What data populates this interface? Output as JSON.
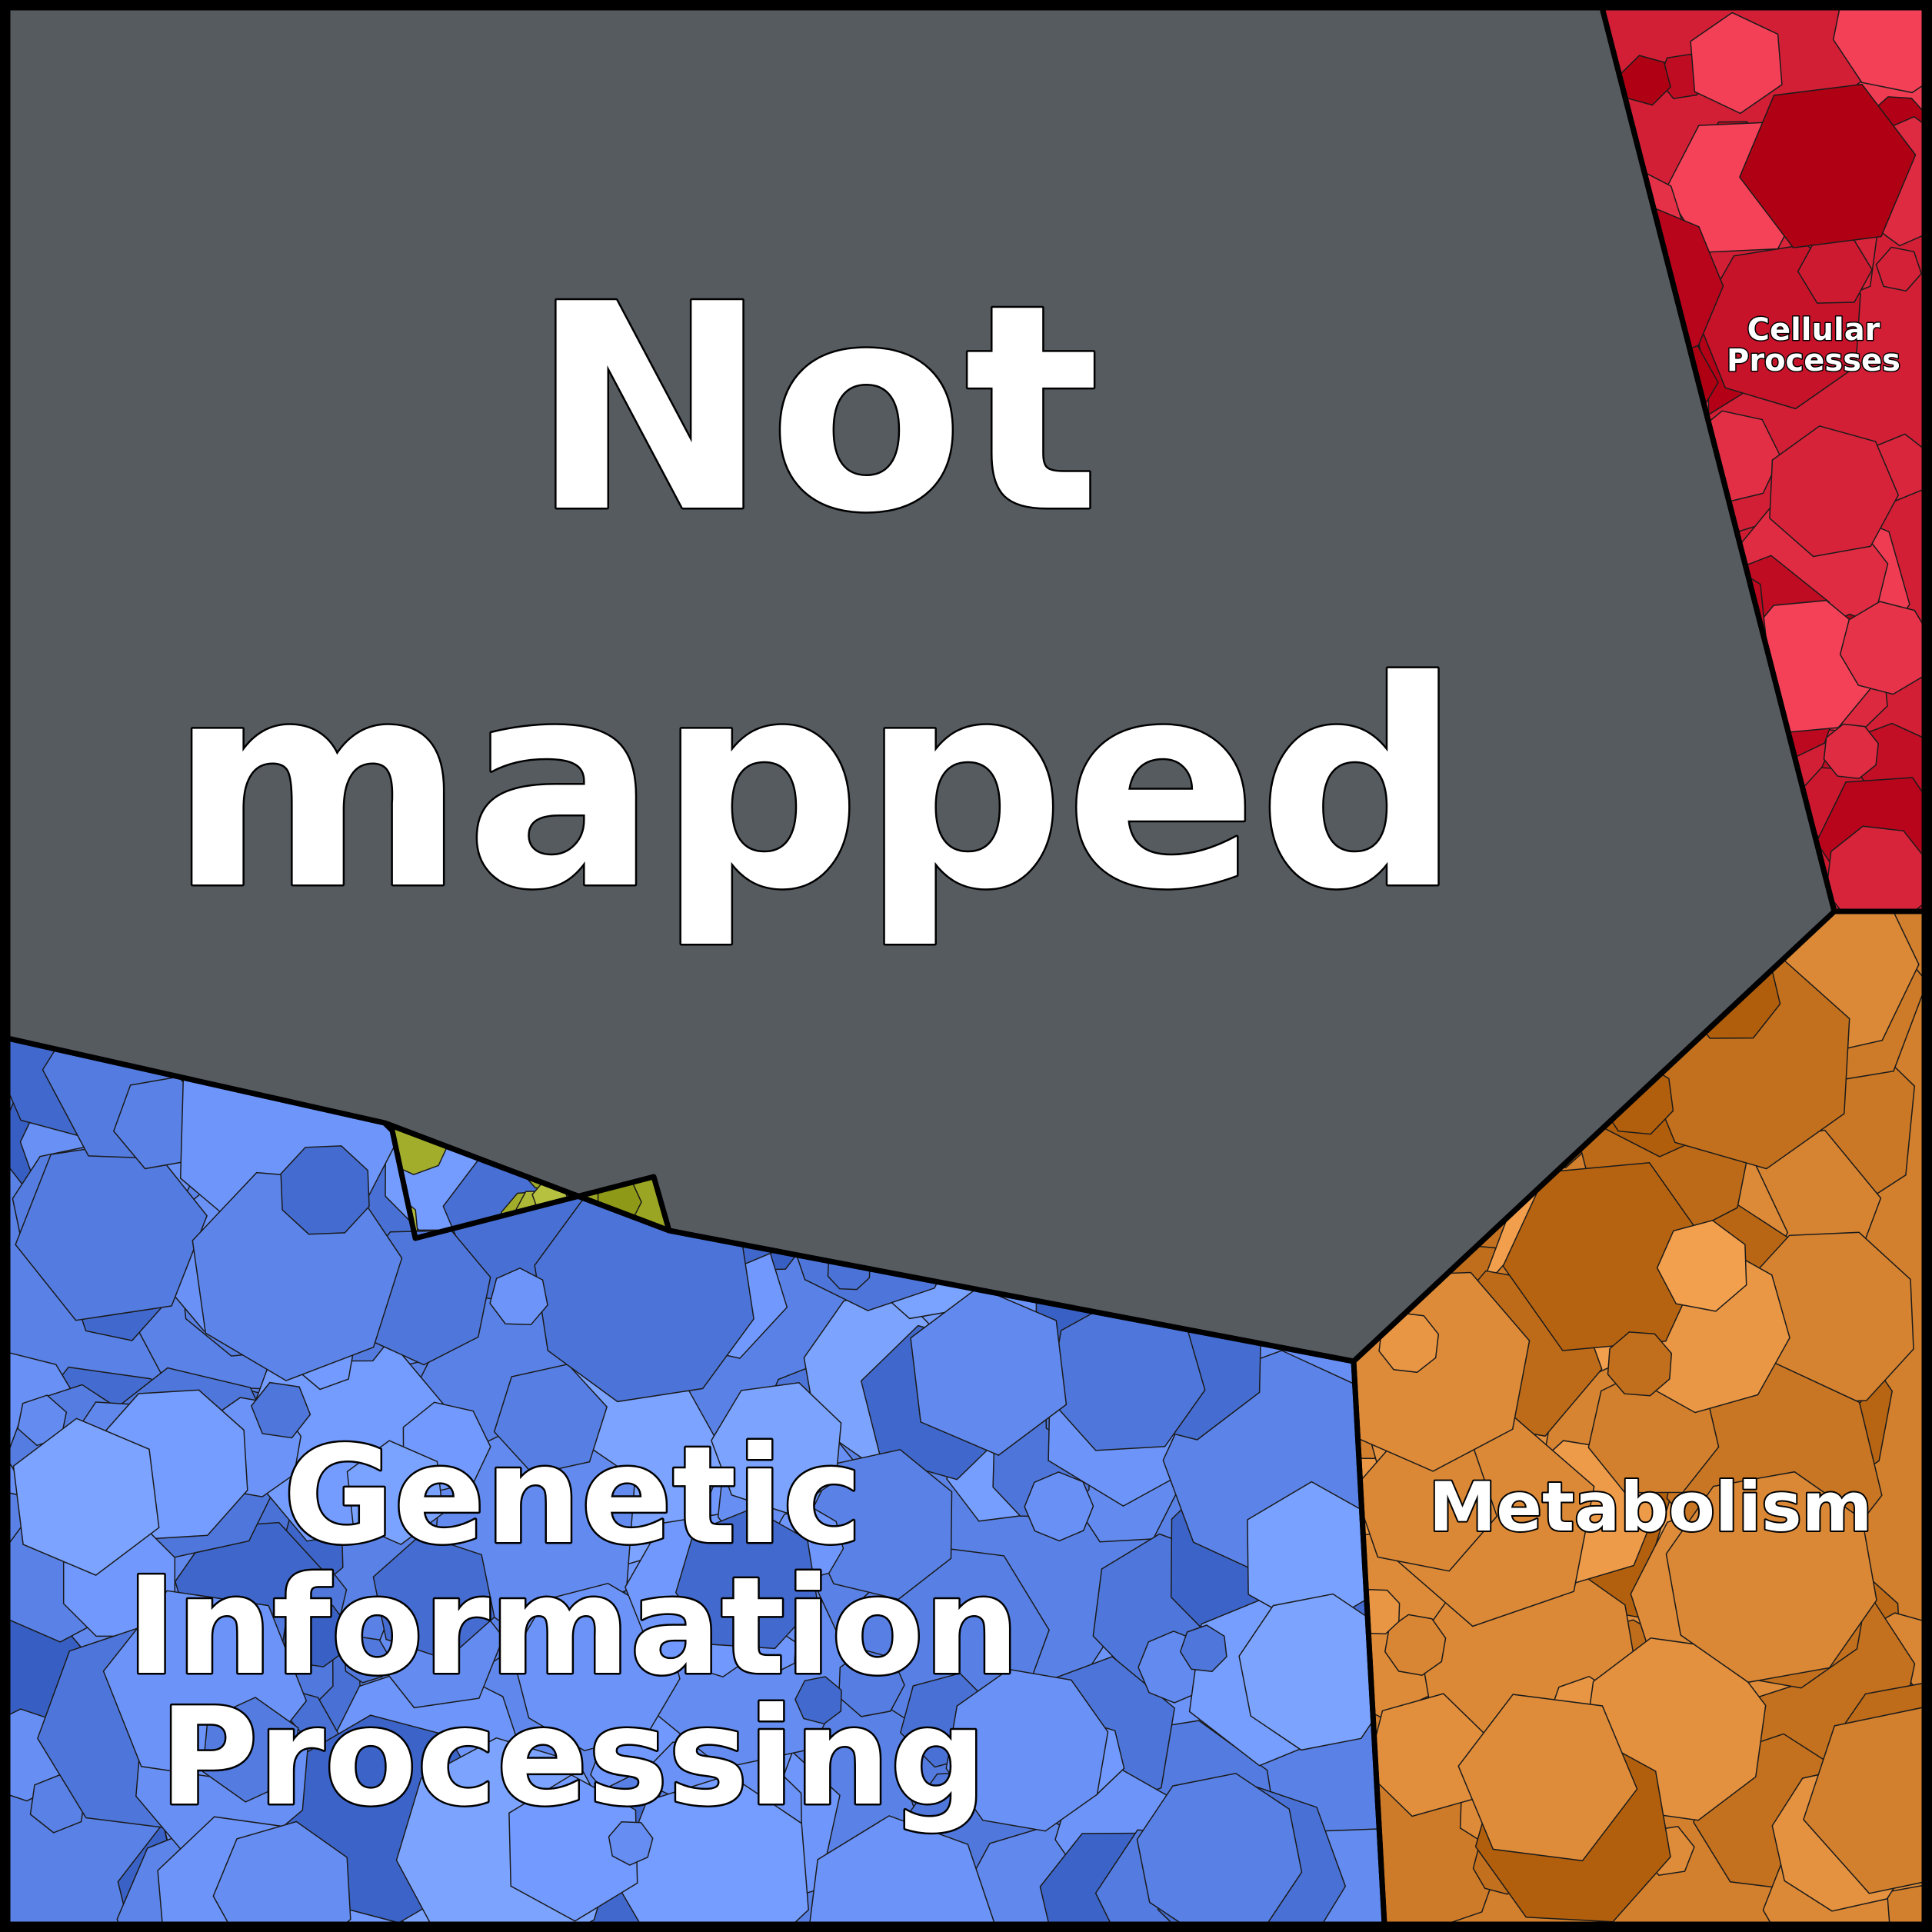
{
  "chart_data": {
    "type": "voronoi-treemap",
    "categories": [
      {
        "name": "Not mapped",
        "label_lines": [
          "Not",
          "mapped"
        ],
        "color": "#565b60"
      },
      {
        "name": "Cellular Processes",
        "label_lines": [
          "Cellular",
          "Processes"
        ],
        "color": "#d21f36"
      },
      {
        "name": "Metabolism",
        "label_lines": [
          "Metabolism"
        ],
        "color": "#d2802e"
      },
      {
        "name": "Genetic Information Processing",
        "label_lines": [
          "Genetic",
          "Information",
          "Processing"
        ],
        "color": "#5a82e6"
      },
      {
        "name": "",
        "label_lines": [],
        "color": "#9aa523"
      }
    ]
  }
}
